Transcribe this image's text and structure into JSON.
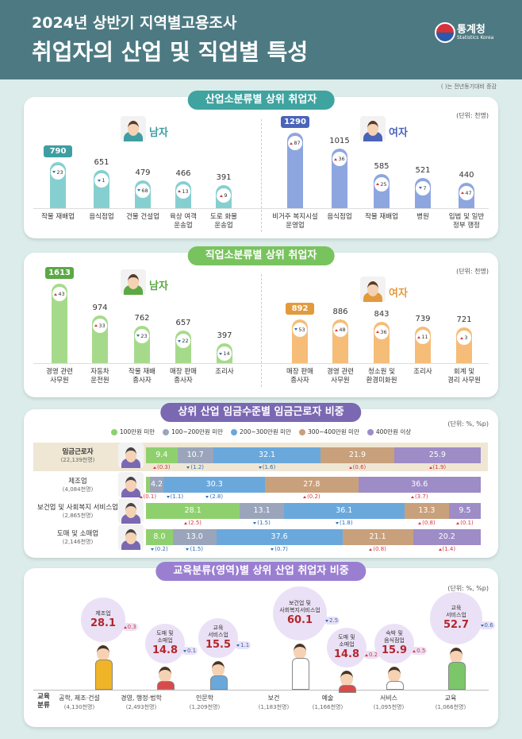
{
  "header": {
    "title": "2024년 상반기 지역별고용조사",
    "subtitle": "취업자의 산업 및 직업별 특성",
    "logo": "통계청",
    "logo_en": "Statistics Korea",
    "note": "( )는 전년동기대비 증감"
  },
  "chart_data": [
    {
      "type": "bar",
      "title": "산업소분류별 상위 취업자",
      "unit": "(단위: 천명)",
      "color": "#3fa3a0",
      "series": [
        {
          "name": "남자",
          "color": "#86cfd1",
          "accent": "#3f9ea1",
          "categories": [
            "작물 재배업",
            "음식점업",
            "건물 건설업",
            "육상 여객\n운송업",
            "도로 화물\n운송업"
          ],
          "values": [
            790,
            651,
            479,
            466,
            391
          ],
          "changes": [
            -23,
            -1,
            -68,
            13,
            9
          ],
          "change_labels": [
            "23",
            "1",
            "68",
            "13",
            "9"
          ]
        },
        {
          "name": "여자",
          "color": "#8ea6df",
          "accent": "#4a64b8",
          "categories": [
            "비거주 복지시설\n운영업",
            "음식점업",
            "작물 재배업",
            "병원",
            "입법 및 일반\n정부 행정"
          ],
          "values": [
            1290,
            1015,
            585,
            521,
            440
          ],
          "changes": [
            87,
            36,
            25,
            -7,
            47
          ],
          "change_labels": [
            "87",
            "36",
            "25",
            "7",
            "47"
          ]
        }
      ]
    },
    {
      "type": "bar",
      "title": "직업소분류별 상위 취업자",
      "unit": "(단위: 천명)",
      "color": "#78c35e",
      "series": [
        {
          "name": "남자",
          "color": "#a6da8b",
          "accent": "#5ba845",
          "categories": [
            "경영 관련\n사무원",
            "자동차\n운전원",
            "작물 재배\n종사자",
            "매장 판매\n종사자",
            "조리사"
          ],
          "values": [
            1613,
            974,
            762,
            657,
            397
          ],
          "changes": [
            43,
            33,
            -23,
            -22,
            -14
          ],
          "change_labels": [
            "43",
            "33",
            "23",
            "22",
            "14"
          ]
        },
        {
          "name": "여자",
          "color": "#f5bd78",
          "accent": "#e39a3c",
          "categories": [
            "매장 판매\n종사자",
            "경영 관련\n사무원",
            "청소원 및\n환경미화원",
            "조리사",
            "회계 및\n경리 사무원"
          ],
          "values": [
            892,
            886,
            843,
            739,
            721
          ],
          "changes": [
            -53,
            48,
            36,
            11,
            3
          ],
          "change_labels": [
            "53",
            "48",
            "36",
            "11",
            "3"
          ]
        }
      ]
    },
    {
      "type": "stacked_bar",
      "title": "상위 산업 임금수준별 임금근로자 비중",
      "unit": "(단위: %, %p)",
      "color": "#7b68b3",
      "categories": [
        "임금근로자",
        "제조업",
        "보건업 및 사회복지 서비스업",
        "도매 및 소매업"
      ],
      "category_notes": [
        "(22,139천명)",
        "(4,084천명)",
        "(2,865천명)",
        "(2,146천명)"
      ],
      "series": [
        {
          "name": "100만원 미만",
          "color": "#8fd06e",
          "values": [
            9.4,
            1.1,
            28.1,
            8.0
          ],
          "value_labels": [
            "9.4",
            null,
            "28.1",
            "8.0"
          ],
          "changes": [
            0.3,
            0.1,
            2.5,
            -0.2
          ],
          "change_labels": [
            "(0.3)",
            "(0.1)",
            "(2.5)",
            "(0.2)"
          ]
        },
        {
          "name": "100~200만원 미만",
          "color": "#9aa5bb",
          "values": [
            10.7,
            4.2,
            13.1,
            13.0
          ],
          "value_labels": [
            "10.7",
            "4.2",
            "13.1",
            "13.0"
          ],
          "changes": [
            -1.2,
            -1.1,
            -1.5,
            -1.5
          ],
          "change_labels": [
            "(1.2)",
            "(1.1)",
            "(1.5)",
            "(1.5)"
          ]
        },
        {
          "name": "200~300만원 미만",
          "color": "#6aa8dc",
          "values": [
            32.1,
            30.3,
            36.1,
            37.6
          ],
          "value_labels": [
            "32.1",
            "30.3",
            "36.1",
            "37.6"
          ],
          "changes": [
            -1.6,
            -2.8,
            -1.8,
            -0.7
          ],
          "change_labels": [
            "(1.6)",
            "(2.8)",
            "(1.8)",
            "(0.7)"
          ]
        },
        {
          "name": "300~400만원 미만",
          "color": "#c9a07c",
          "values": [
            21.9,
            27.8,
            13.3,
            21.1
          ],
          "value_labels": [
            "21.9",
            "27.8",
            "13.3",
            "21.1"
          ],
          "changes": [
            0.6,
            0.2,
            0.8,
            0.8
          ],
          "change_labels": [
            "(0.6)",
            "(0.2)",
            "(0.8)",
            "(0.8)"
          ]
        },
        {
          "name": "400만원 이상",
          "color": "#9d8cc6",
          "values": [
            25.9,
            36.6,
            9.5,
            20.2
          ],
          "value_labels": [
            "25.9",
            "36.6",
            "9.5",
            "20.2"
          ],
          "changes": [
            1.9,
            3.7,
            0.1,
            1.4
          ],
          "change_labels": [
            "(1.9)",
            "(3.7)",
            "(0.1)",
            "(1.4)"
          ]
        }
      ]
    },
    {
      "type": "bubble",
      "title": "교육분류(영역)별 상위 산업 취업자 비중",
      "unit": "(단위: %, %p)",
      "axis_label": "교육\n분류",
      "color": "#9a7fd1",
      "bubble_color": "#ebe1f6",
      "value_color": "#b3262d",
      "categories": [
        "공학, 제조·건설",
        "경영, 행정·법학",
        "인문학",
        "보건",
        "예술",
        "서비스",
        "교육"
      ],
      "category_notes": [
        "(4,130천명)",
        "(2,493천명)",
        "(1,209천명)",
        "(1,183천명)",
        "(1,166천명)",
        "(1,095천명)",
        "(1,066천명)"
      ],
      "industries": [
        "제조업",
        "도매 및\n소매업",
        "교육\n서비스업",
        "보건업 및\n사회복지서비스업",
        "도매 및\n소매업",
        "숙박 및\n음식점업",
        "교육\n서비스업"
      ],
      "values": [
        28.1,
        14.8,
        15.5,
        60.1,
        14.8,
        15.9,
        52.7
      ],
      "changes": [
        0.3,
        -0.1,
        -1.1,
        -2.5,
        0.2,
        0.5,
        -0.6
      ],
      "change_labels": [
        "0.3",
        "0.1",
        "1.1",
        "2.5",
        "0.2",
        "0.5",
        "0.6"
      ]
    }
  ]
}
